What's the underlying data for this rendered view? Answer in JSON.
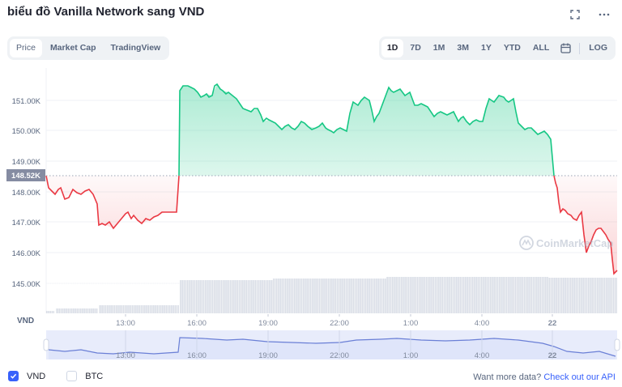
{
  "header": {
    "title": "biểu đồ Vanilla Network sang VND",
    "fullscreen_icon": "fullscreen-icon",
    "more_icon": "more-horizontal-icon"
  },
  "tabs": [
    {
      "label": "Price",
      "active": true
    },
    {
      "label": "Market Cap",
      "active": false
    },
    {
      "label": "TradingView",
      "active": false
    }
  ],
  "ranges": [
    {
      "label": "1D",
      "active": true
    },
    {
      "label": "7D",
      "active": false
    },
    {
      "label": "1M",
      "active": false
    },
    {
      "label": "3M",
      "active": false
    },
    {
      "label": "1Y",
      "active": false
    },
    {
      "label": "YTD",
      "active": false
    },
    {
      "label": "ALL",
      "active": false
    }
  ],
  "calendar_icon": "calendar-icon",
  "log_label": "LOG",
  "axis_currency": "VND",
  "baseline_label": "148.52K",
  "watermark": "CoinMarketCap",
  "legend": [
    {
      "label": "VND",
      "checked": true
    },
    {
      "label": "BTC",
      "checked": false
    }
  ],
  "footer": {
    "api_prefix": "Want more data?",
    "api_link": "Check out our API"
  },
  "colors": {
    "up": "#16c784",
    "down": "#ea3943",
    "accent": "#3861fb",
    "baseline_tag": "#858ca2"
  },
  "chart_data": {
    "type": "area",
    "title": "biểu đồ Vanilla Network sang VND",
    "xlabel": "",
    "ylabel": "VND",
    "y_ticks": [
      "151.00K",
      "150.00K",
      "149.00K",
      "148.00K",
      "147.00K",
      "146.00K",
      "145.00K"
    ],
    "ylim": [
      144.0,
      152.0
    ],
    "x_ticks": [
      "13:00",
      "16:00",
      "19:00",
      "22:00",
      "1:00",
      "4:00",
      "22"
    ],
    "baseline": 148.52,
    "grid": true,
    "x": [
      "10:00",
      "10:30",
      "11:00",
      "11:30",
      "12:00",
      "12:30",
      "13:00",
      "13:30",
      "14:00",
      "14:30",
      "15:00",
      "15:15",
      "15:30",
      "16:00",
      "16:30",
      "17:00",
      "17:30",
      "18:00",
      "18:30",
      "19:00",
      "19:30",
      "20:00",
      "20:30",
      "21:00",
      "21:30",
      "22:00",
      "22:30",
      "23:00",
      "23:30",
      "0:00",
      "0:30",
      "1:00",
      "1:30",
      "2:00",
      "2:30",
      "3:00",
      "3:30",
      "4:00",
      "4:30",
      "5:00",
      "5:30",
      "6:00",
      "6:30",
      "7:00",
      "7:30",
      "8:00",
      "8:30",
      "9:00"
    ],
    "series": [
      {
        "name": "Price (VND)",
        "values": [
          148.52,
          148.05,
          148.15,
          147.95,
          148.1,
          146.95,
          146.9,
          147.5,
          147.0,
          147.25,
          147.35,
          147.3,
          151.4,
          151.4,
          151.1,
          151.5,
          151.0,
          150.85,
          150.35,
          150.3,
          150.45,
          150.0,
          150.2,
          150.05,
          150.0,
          149.95,
          150.9,
          150.3,
          151.2,
          150.5,
          151.0,
          150.7,
          150.9,
          150.3,
          150.5,
          150.2,
          150.5,
          151.0,
          151.1,
          150.5,
          150.0,
          149.9,
          148.5,
          147.3,
          147.0,
          146.9,
          146.0,
          145.3
        ]
      },
      {
        "name": "Volume",
        "values": [
          1,
          3,
          3,
          3,
          3,
          9,
          9,
          9,
          9,
          9,
          9,
          9,
          40,
          40,
          40,
          40,
          40,
          39,
          39,
          40,
          40,
          40,
          40,
          40,
          40,
          40,
          40,
          40,
          41,
          40,
          41,
          41,
          41,
          41,
          41,
          41,
          41,
          41,
          41,
          41,
          41,
          40,
          40,
          40,
          40,
          40,
          40,
          40
        ]
      }
    ],
    "legend_position": "bottom-left"
  }
}
